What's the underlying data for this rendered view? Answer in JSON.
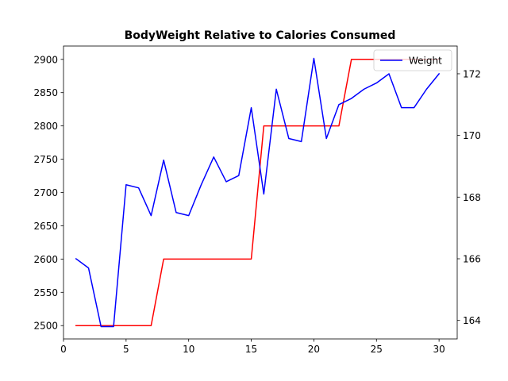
{
  "chart_data": {
    "type": "line",
    "title": "BodyWeight Relative to Calories Consumed",
    "xlabel": "",
    "ylabel_left": "",
    "ylabel_right": "",
    "x": [
      1,
      2,
      3,
      4,
      5,
      6,
      7,
      8,
      9,
      10,
      11,
      12,
      13,
      14,
      15,
      16,
      17,
      18,
      19,
      20,
      21,
      22,
      23,
      24,
      25,
      26,
      27,
      28,
      29,
      30
    ],
    "xlim": [
      0,
      31.45
    ],
    "xticks": [
      0,
      5,
      10,
      15,
      20,
      25,
      30
    ],
    "ylim_left": [
      2480,
      2920
    ],
    "yticks_left": [
      2500,
      2550,
      2600,
      2650,
      2700,
      2750,
      2800,
      2850,
      2900
    ],
    "ylim_right": [
      163.4,
      172.9
    ],
    "yticks_right": [
      164,
      166,
      168,
      170,
      172
    ],
    "grid": false,
    "legend": {
      "placement": "top-right",
      "entries": [
        "Weight"
      ]
    },
    "series": [
      {
        "axis": "left",
        "color": "#ff0000",
        "values": [
          2500,
          2500,
          2500,
          2500,
          2500,
          2500,
          2500,
          2600,
          2600,
          2600,
          2600,
          2600,
          2600,
          2600,
          2600,
          2800,
          2800,
          2800,
          2800,
          2800,
          2800,
          2800,
          2900,
          2900,
          2900,
          2900,
          2900,
          2900,
          2900,
          2900
        ]
      },
      {
        "name": "Weight",
        "axis": "right",
        "color": "#0000ff",
        "values": [
          166.0,
          165.7,
          163.8,
          163.8,
          168.4,
          168.3,
          167.4,
          169.2,
          167.5,
          167.4,
          168.4,
          169.3,
          168.5,
          168.7,
          170.9,
          168.1,
          171.5,
          169.9,
          169.8,
          172.5,
          169.9,
          171.0,
          171.2,
          171.5,
          171.7,
          172.0,
          170.9,
          170.9,
          171.5,
          172.0
        ]
      }
    ]
  }
}
